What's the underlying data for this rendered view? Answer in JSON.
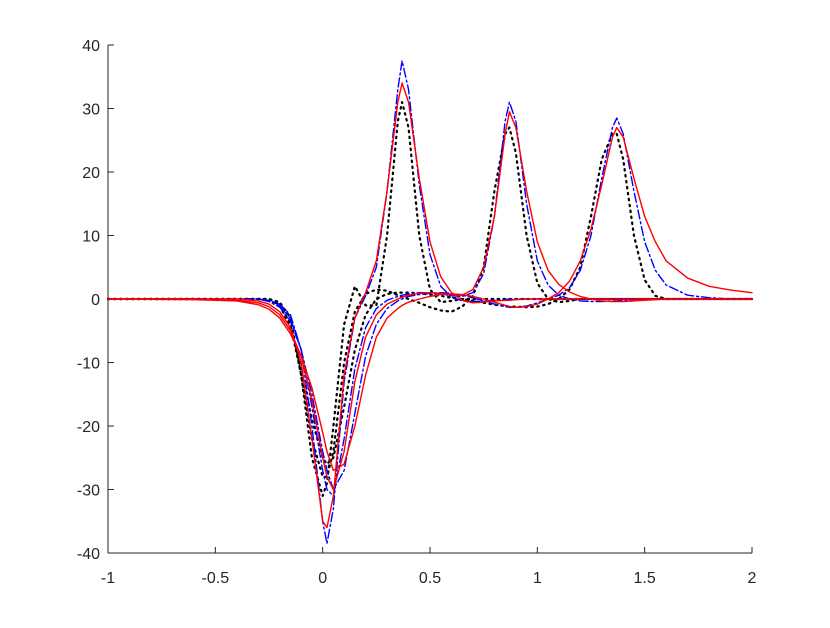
{
  "chart_data": {
    "type": "line",
    "x": [
      -1,
      -0.6,
      -0.4,
      -0.3,
      -0.25,
      -0.2,
      -0.15,
      -0.1,
      -0.05,
      0,
      0.02,
      0.05,
      0.1,
      0.15,
      0.2,
      0.25,
      0.3,
      0.35,
      0.37,
      0.4,
      0.45,
      0.5,
      0.55,
      0.6,
      0.65,
      0.7,
      0.75,
      0.8,
      0.85,
      0.87,
      0.9,
      0.95,
      1,
      1.05,
      1.1,
      1.15,
      1.2,
      1.25,
      1.3,
      1.35,
      1.37,
      1.4,
      1.45,
      1.5,
      1.55,
      1.6,
      1.7,
      1.8,
      1.9,
      2
    ],
    "series": [
      {
        "color": "#000000",
        "style": "dotted",
        "values": [
          0,
          0,
          0,
          0,
          0,
          -0.5,
          -3,
          -12,
          -25,
          -31,
          -29,
          -20,
          -4,
          2,
          -1,
          -1,
          10,
          28,
          31,
          27,
          10,
          1.5,
          -0.5,
          -0.3,
          0,
          0,
          0,
          0,
          0,
          0,
          0,
          0,
          0,
          0,
          0,
          0,
          0,
          0,
          0,
          0,
          0,
          0,
          0,
          0,
          0,
          0,
          0,
          0,
          0,
          0
        ]
      },
      {
        "color": "#000000",
        "style": "dotted",
        "values": [
          0,
          0,
          0,
          0,
          0,
          -0.8,
          -4,
          -12,
          -22,
          -28,
          -28,
          -24,
          -10,
          -2,
          0.8,
          1.5,
          1.3,
          0.6,
          0.3,
          0,
          -0.6,
          -1.3,
          -1.8,
          -2,
          -1.2,
          0.5,
          5,
          17,
          26,
          27,
          23,
          10,
          2.5,
          0,
          -0.5,
          -0.3,
          0,
          0,
          0,
          0,
          0,
          0,
          0,
          0,
          0,
          0,
          0,
          0,
          0,
          0
        ]
      },
      {
        "color": "#000000",
        "style": "dotted",
        "values": [
          0,
          0,
          0,
          0,
          0,
          -1,
          -4.5,
          -11,
          -19,
          -25,
          -26,
          -25,
          -17,
          -8,
          -2.5,
          0,
          0.8,
          1,
          1,
          1,
          0.9,
          0.7,
          0.5,
          0.2,
          0,
          -0.3,
          -0.6,
          -0.9,
          -1.1,
          -1.2,
          -1.2,
          -1.3,
          -1.2,
          -0.8,
          0,
          1.5,
          5,
          13,
          22,
          26,
          26,
          22,
          10,
          3,
          0.5,
          0,
          0,
          0,
          0,
          0
        ]
      },
      {
        "color": "#0000ff",
        "style": "dashdot",
        "values": [
          0,
          0,
          0,
          0,
          -0.2,
          -0.8,
          -2.5,
          -8,
          -20,
          -35,
          -38.5,
          -33,
          -13,
          -3,
          0.5,
          5,
          17,
          33,
          37.5,
          33,
          18,
          7,
          2,
          0.3,
          -0.3,
          -0.4,
          -0.3,
          -0.2,
          -0.1,
          0,
          0,
          0,
          0,
          0,
          0,
          0,
          0,
          0,
          0,
          0,
          0,
          0,
          0,
          0,
          0,
          0,
          0,
          0,
          0,
          0
        ]
      },
      {
        "color": "#0000ff",
        "style": "dashdot",
        "values": [
          0,
          0,
          0,
          0,
          -0.3,
          -1,
          -3,
          -8,
          -17,
          -27,
          -30,
          -31,
          -22,
          -11,
          -4.5,
          -1.5,
          -0.2,
          0.4,
          0.6,
          0.8,
          1,
          1,
          0.8,
          0.5,
          0.4,
          1,
          4,
          13,
          28,
          31,
          28,
          15,
          6,
          2.2,
          0.6,
          0,
          -0.3,
          -0.4,
          -0.4,
          -0.3,
          -0.3,
          -0.2,
          -0.1,
          0,
          0,
          0,
          0,
          0,
          0,
          0
        ]
      },
      {
        "color": "#0000ff",
        "style": "dashdot",
        "values": [
          0,
          0,
          0,
          0,
          -0.4,
          -1.3,
          -3.5,
          -8,
          -15,
          -24,
          -27,
          -30,
          -27,
          -18,
          -9,
          -4,
          -1.5,
          -0.3,
          0,
          0.4,
          0.7,
          0.9,
          1,
          0.9,
          0.6,
          0.2,
          -0.3,
          -0.8,
          -1.2,
          -1.3,
          -1.3,
          -1.1,
          -0.6,
          0,
          0.6,
          1.8,
          4.5,
          10,
          19,
          27,
          28.5,
          26,
          17,
          9,
          4.5,
          2.2,
          0.6,
          0.2,
          0,
          0
        ]
      },
      {
        "color": "#ff0000",
        "style": "solid",
        "values": [
          0,
          0,
          0,
          -0.3,
          -0.8,
          -2,
          -4.5,
          -10,
          -22,
          -35,
          -36,
          -31,
          -12,
          -3,
          1,
          6,
          17,
          31,
          34,
          31,
          19,
          9,
          3.5,
          1,
          -0.2,
          -0.6,
          -0.5,
          -0.3,
          -0.2,
          -0.2,
          -0.1,
          0,
          0,
          0,
          0,
          0,
          0,
          0,
          0,
          0,
          0,
          0,
          0,
          0,
          0,
          0,
          0,
          0,
          0,
          0
        ]
      },
      {
        "color": "#ff0000",
        "style": "solid",
        "values": [
          0,
          0,
          -0.2,
          -0.6,
          -1.2,
          -2.5,
          -5,
          -9,
          -16,
          -25,
          -28,
          -30,
          -24,
          -13,
          -6,
          -2.5,
          -0.8,
          0,
          0.3,
          0.6,
          0.9,
          1,
          0.9,
          0.7,
          0.6,
          1.5,
          5,
          13,
          26,
          29.5,
          27,
          17,
          9,
          4.5,
          2.3,
          1.1,
          0.4,
          0,
          -0.3,
          -0.4,
          -0.4,
          -0.4,
          -0.3,
          -0.2,
          -0.1,
          0,
          0,
          0,
          0,
          0
        ]
      },
      {
        "color": "#ff0000",
        "style": "solid",
        "values": [
          0,
          -0.1,
          -0.3,
          -0.9,
          -1.6,
          -3,
          -5.5,
          -9,
          -14,
          -21,
          -24,
          -27,
          -26,
          -20,
          -12,
          -6,
          -3,
          -1.5,
          -1,
          -0.5,
          0,
          0.4,
          0.7,
          0.8,
          0.7,
          0.4,
          0,
          -0.5,
          -1,
          -1.2,
          -1.3,
          -1.2,
          -0.8,
          0,
          1,
          2.8,
          6,
          11,
          18,
          25.5,
          27,
          25.5,
          19,
          13,
          9,
          6,
          3.3,
          2,
          1.4,
          1
        ]
      }
    ],
    "xlim": [
      -1,
      2
    ],
    "ylim": [
      -40,
      40
    ],
    "xticks": [
      -1,
      -0.5,
      0,
      0.5,
      1,
      1.5,
      2
    ],
    "yticks": [
      -40,
      -30,
      -20,
      -10,
      0,
      10,
      20,
      30,
      40
    ],
    "grid": false
  }
}
